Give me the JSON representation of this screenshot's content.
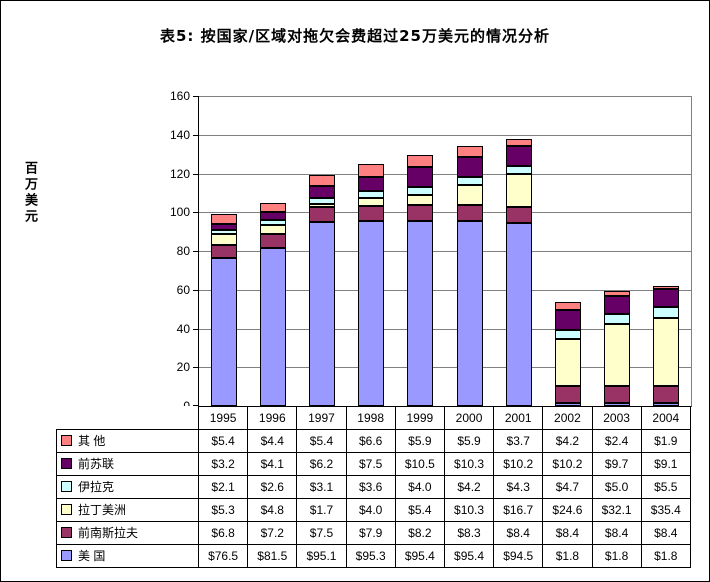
{
  "title": "表5:  按国家/区域对拖欠会费超过25万美元的情况分析",
  "y_axis_label": "百万美元",
  "chart_data": {
    "type": "bar",
    "stacked": true,
    "title": "表5:  按国家/区域对拖欠会费超过25万美元的情况分析",
    "ylabel": "百万美元",
    "xlabel": "",
    "ylim": [
      0,
      160
    ],
    "yticks": [
      0,
      20,
      40,
      60,
      80,
      100,
      120,
      140,
      160
    ],
    "grid": true,
    "legend_position": "table-left",
    "value_prefix": "$",
    "categories": [
      "1995",
      "1996",
      "1997",
      "1998",
      "1999",
      "2000",
      "2001",
      "2002",
      "2003",
      "2004"
    ],
    "series": [
      {
        "name": "美 国",
        "color": "#9999FF",
        "values": [
          76.5,
          81.5,
          95.1,
          95.3,
          95.4,
          95.4,
          94.5,
          1.8,
          1.8,
          1.8
        ]
      },
      {
        "name": "前南斯拉夫",
        "color": "#993366",
        "values": [
          6.8,
          7.2,
          7.5,
          7.9,
          8.2,
          8.3,
          8.4,
          8.4,
          8.4,
          8.4
        ]
      },
      {
        "name": "拉丁美洲",
        "color": "#FFFFCC",
        "values": [
          5.3,
          4.8,
          1.7,
          4.0,
          5.4,
          10.3,
          16.7,
          24.6,
          32.1,
          35.4
        ]
      },
      {
        "name": "伊拉克",
        "color": "#CCFFFF",
        "values": [
          2.1,
          2.6,
          3.1,
          3.6,
          4.0,
          4.2,
          4.3,
          4.7,
          5.0,
          5.5
        ]
      },
      {
        "name": "前苏联",
        "color": "#660066",
        "values": [
          3.2,
          4.1,
          6.2,
          7.5,
          10.5,
          10.3,
          10.2,
          10.2,
          9.7,
          9.1
        ]
      },
      {
        "name": "其 他",
        "color": "#FF8080",
        "values": [
          5.4,
          4.4,
          5.4,
          6.6,
          5.9,
          5.9,
          3.7,
          4.2,
          2.4,
          1.9
        ]
      }
    ]
  }
}
